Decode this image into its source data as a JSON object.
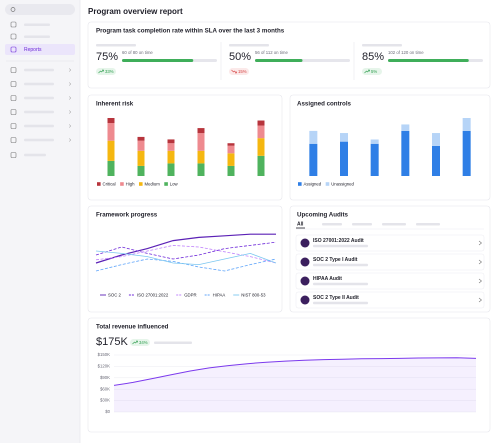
{
  "sidebar": {
    "active_item": "Reports"
  },
  "header": {
    "title": "Program overview report"
  },
  "sla": {
    "title": "Program task completion rate within SLA over the last 3 months",
    "stats": [
      {
        "value": 75,
        "value_label": "75%",
        "detail": "60 of 80 on time",
        "change": "33%",
        "trend": "up"
      },
      {
        "value": 50,
        "value_label": "50%",
        "detail": "56 of 112 on time",
        "change": "15%",
        "trend": "down"
      },
      {
        "value": 85,
        "value_label": "85%",
        "detail": "102 of 120 on time",
        "change": "5%",
        "trend": "up"
      }
    ]
  },
  "inherent_risk": {
    "type": "bar",
    "title": "Inherent risk",
    "stacked": true,
    "series": [
      {
        "name": "Low",
        "color": "#4fb35e",
        "values": [
          12,
          8,
          10,
          10,
          8,
          16
        ]
      },
      {
        "name": "Medium",
        "color": "#f5b710",
        "values": [
          16,
          12,
          10,
          10,
          10,
          14
        ]
      },
      {
        "name": "High",
        "color": "#ee8a8f",
        "values": [
          14,
          8,
          6,
          14,
          6,
          10
        ]
      },
      {
        "name": "Critical",
        "color": "#b7343c",
        "values": [
          4,
          3,
          3,
          4,
          2,
          4
        ]
      }
    ],
    "legend_order": [
      3,
      2,
      1,
      0
    ]
  },
  "assigned_controls": {
    "type": "bar",
    "title": "Assigned controls",
    "stacked": true,
    "series": [
      {
        "name": "Assigned",
        "color": "#2f7fe6",
        "values": [
          30,
          32,
          30,
          42,
          28,
          42
        ]
      },
      {
        "name": "Unassigned",
        "color": "#b6d4f7",
        "values": [
          12,
          8,
          4,
          6,
          12,
          12
        ]
      }
    ],
    "legend_order": [
      0,
      1
    ]
  },
  "framework_progress": {
    "type": "line",
    "title": "Framework progress",
    "ylim": [
      0,
      100
    ],
    "series": [
      {
        "name": "SOC 2",
        "color": "#5b21b6",
        "dash": "solid",
        "values": [
          40,
          50,
          58,
          68,
          72,
          74,
          76,
          76
        ]
      },
      {
        "name": "ISO 27001:2022",
        "color": "#6d28d9",
        "dash": "dashed",
        "values": [
          50,
          60,
          52,
          45,
          50,
          58,
          62,
          66
        ]
      },
      {
        "name": "GDPR",
        "color": "#c084fc",
        "dash": "dashed",
        "values": [
          44,
          48,
          55,
          62,
          60,
          54,
          48,
          40
        ]
      },
      {
        "name": "HIPAA",
        "color": "#60a5fa",
        "dash": "dashed",
        "values": [
          30,
          38,
          45,
          42,
          35,
          30,
          38,
          45
        ]
      },
      {
        "name": "NIST 800-53",
        "color": "#7cc7f0",
        "dash": "solid",
        "values": [
          55,
          52,
          48,
          40,
          38,
          45,
          52,
          40
        ]
      }
    ]
  },
  "audits": {
    "title": "Upcoming Audits",
    "active_tab": "All",
    "items": [
      "ISO 27001:2022 Audit",
      "SOC 2 Type I Audit",
      "HIPAA Audit",
      "SOC 2 Type II Audit"
    ]
  },
  "revenue": {
    "type": "area",
    "title": "Total revenue influenced",
    "total": "$175K",
    "change": "34%",
    "trend": "up",
    "color": "#7c3aed",
    "ylim": [
      0,
      150000
    ],
    "yticks": [
      {
        "value": 0,
        "label": "$0"
      },
      {
        "value": 30000,
        "label": "$30K"
      },
      {
        "value": 60000,
        "label": "$60K"
      },
      {
        "value": 90000,
        "label": "$90K"
      },
      {
        "value": 120000,
        "label": "$120K"
      },
      {
        "value": 150000,
        "label": "$150K"
      }
    ],
    "values": [
      70000,
      78000,
      88000,
      98000,
      108000,
      116000,
      122000,
      127000,
      131000,
      134000,
      136000,
      138000,
      139000,
      140000,
      140500,
      141000,
      142000,
      142500,
      143000,
      141000
    ]
  }
}
